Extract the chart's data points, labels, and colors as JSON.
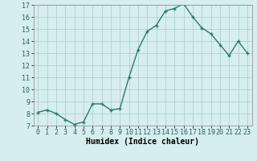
{
  "x": [
    0,
    1,
    2,
    3,
    4,
    5,
    6,
    7,
    8,
    9,
    10,
    11,
    12,
    13,
    14,
    15,
    16,
    17,
    18,
    19,
    20,
    21,
    22,
    23
  ],
  "y": [
    8.1,
    8.3,
    8.0,
    7.5,
    7.1,
    7.3,
    8.8,
    8.8,
    8.3,
    8.4,
    11.0,
    13.3,
    14.8,
    15.3,
    16.5,
    16.7,
    17.1,
    16.0,
    15.1,
    14.6,
    13.7,
    12.8,
    14.0,
    13.0
  ],
  "xlabel": "Humidex (Indice chaleur)",
  "ylim": [
    7,
    17
  ],
  "yticks": [
    7,
    8,
    9,
    10,
    11,
    12,
    13,
    14,
    15,
    16,
    17
  ],
  "xticks": [
    0,
    1,
    2,
    3,
    4,
    5,
    6,
    7,
    8,
    9,
    10,
    11,
    12,
    13,
    14,
    15,
    16,
    17,
    18,
    19,
    20,
    21,
    22,
    23
  ],
  "line_color": "#2d7a6e",
  "marker": "+",
  "bg_color": "#d6eeee",
  "grid_color": "#b0d0d0",
  "tick_label_fontsize": 6,
  "xlabel_fontsize": 7,
  "marker_size": 3,
  "linewidth": 1.0
}
